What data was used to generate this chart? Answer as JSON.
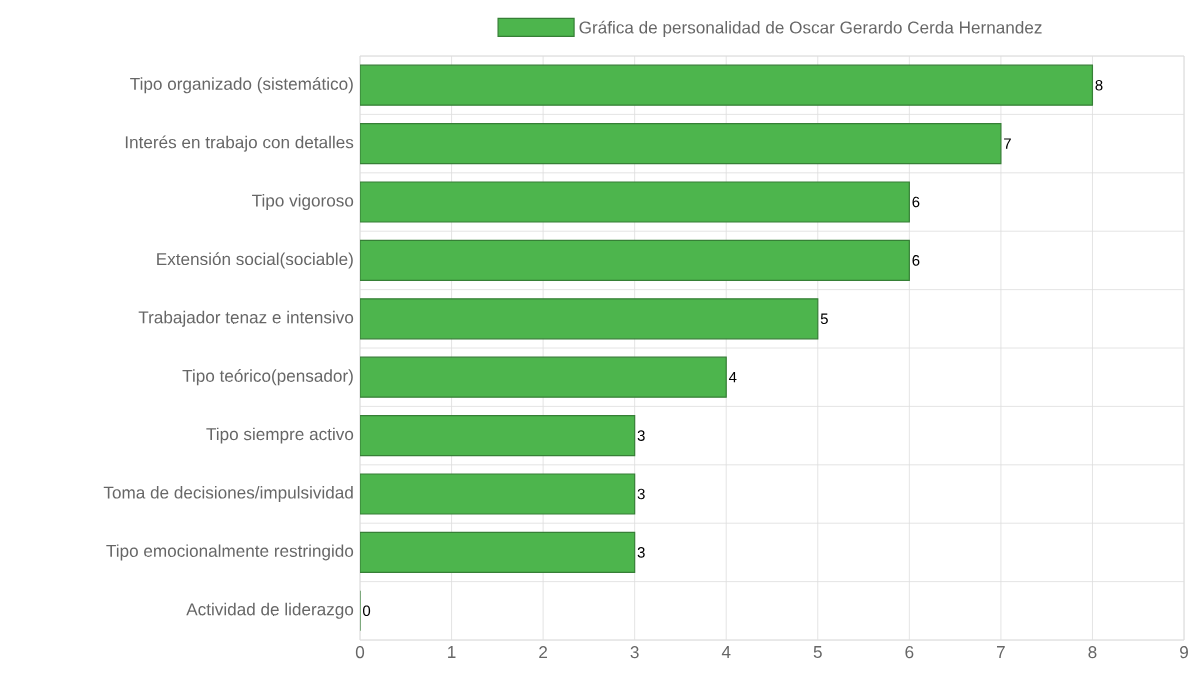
{
  "chart_data": {
    "type": "bar",
    "orientation": "horizontal",
    "categories": [
      "Tipo organizado (sistemático)",
      "Interés en trabajo con detalles",
      "Tipo vigoroso",
      "Extensión social(sociable)",
      "Trabajador tenaz e intensivo",
      "Tipo teórico(pensador)",
      "Tipo siempre activo",
      "Toma de decisiones/impulsividad",
      "Tipo emocionalmente restringido",
      "Actividad de liderazgo"
    ],
    "series": [
      {
        "name": "Gráfica de personalidad de Oscar Gerardo Cerda Hernandez",
        "color": "#4db54d",
        "values": [
          8,
          7,
          6,
          6,
          5,
          4,
          3,
          3,
          3,
          0
        ]
      }
    ],
    "xlim": [
      0,
      9
    ],
    "xticks": [
      0,
      1,
      2,
      3,
      4,
      5,
      6,
      7,
      8,
      9
    ],
    "grid": true,
    "legend": "top",
    "data_labels": true
  }
}
